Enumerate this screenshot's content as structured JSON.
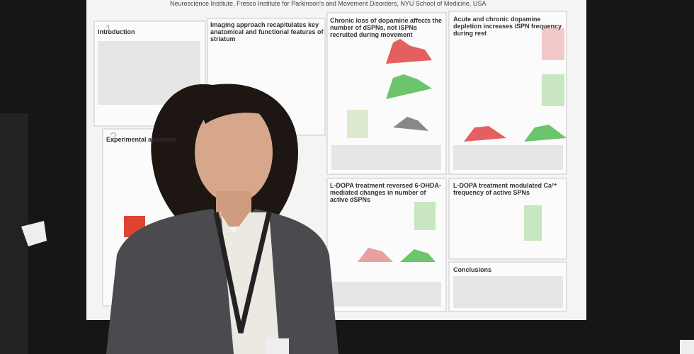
{
  "poster": {
    "author_line": "Neuroscience Institute, Fresco Institute for Parkinson's and Movement Disorders, NYU School of Medicine, USA",
    "sections": [
      {
        "number": "1",
        "title": "Introduction"
      },
      {
        "title": "Imaging approach recapitulates key anatomical and functional features of striatum"
      },
      {
        "title": "Chronic loss of dopamine affects the number of dSPNs, not iSPNs recruited during movement"
      },
      {
        "title": "Acute and chronic dopamine depletion increases iSPN frequency during rest"
      },
      {
        "number": "2",
        "title": "Experimental approach"
      },
      {
        "title": "L-DOPA treatment reversed 6-OHDA-mediated changes in number of active dSPNs"
      },
      {
        "title": "L-DOPA treatment modulated Ca²⁺ frequency of active SPNs"
      },
      {
        "title": "Conclusions"
      }
    ]
  }
}
